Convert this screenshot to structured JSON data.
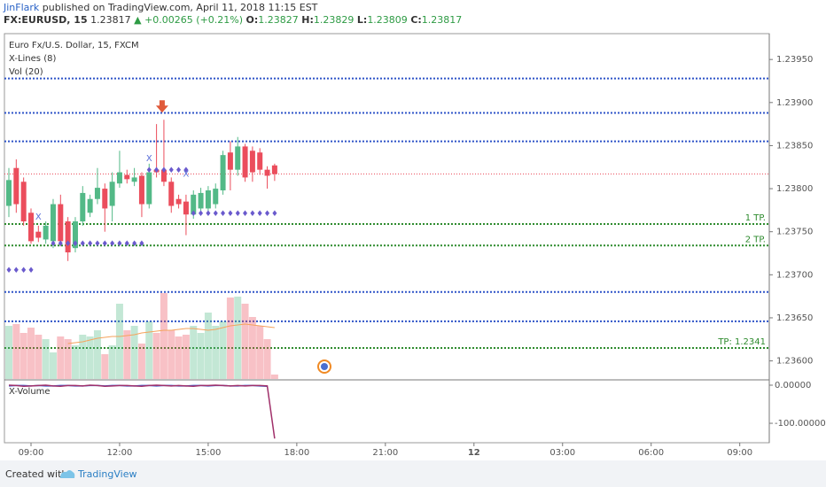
{
  "header": {
    "author": "JinFlark",
    "published": "published on TradingView.com, April 11, 2018 11:15 EST",
    "symbol": "FX:EURUSD, 15",
    "last": 1.23817,
    "change": "▲ +0.00265 (+0.21%)",
    "ohlc": [
      {
        "label": "O:",
        "value": 1.23827
      },
      {
        "label": "H:",
        "value": 1.23829
      },
      {
        "label": "L:",
        "value": 1.23809
      },
      {
        "label": "C:",
        "value": 1.23817
      }
    ]
  },
  "chart_data": {
    "type": "candlestick",
    "title": "Euro Fx/U.S. Dollar, 15, FXCM",
    "indicators": [
      "X-Lines (8)",
      "Vol (20)"
    ],
    "x": [
      8.25,
      8.5,
      8.75,
      9,
      9.25,
      9.5,
      9.75,
      10,
      10.25,
      10.5,
      10.75,
      11,
      11.25,
      11.5,
      11.75,
      12,
      12.25,
      12.5,
      12.75,
      13,
      13.25,
      13.5,
      13.75,
      14,
      14.25,
      14.5,
      14.75,
      15,
      15.25,
      15.5,
      15.75,
      16,
      16.25,
      16.5,
      16.75,
      17,
      17.25
    ],
    "open": [
      1.2378,
      1.23824,
      1.23808,
      1.23772,
      1.2375,
      1.23741,
      1.23739,
      1.23782,
      1.23762,
      1.23731,
      1.23762,
      1.23772,
      1.23788,
      1.238,
      1.2378,
      1.23806,
      1.23816,
      1.23808,
      1.23815,
      1.23782,
      1.23822,
      1.23822,
      1.23808,
      1.23788,
      1.23785,
      1.2377,
      1.23777,
      1.23777,
      1.23782,
      1.23798,
      1.23842,
      1.23822,
      1.23849,
      1.23844,
      1.23842,
      1.23822,
      1.23827
    ],
    "high": [
      1.23824,
      1.23834,
      1.23813,
      1.23777,
      1.23757,
      1.23762,
      1.23788,
      1.23793,
      1.23767,
      1.23767,
      1.23803,
      1.23793,
      1.23824,
      1.23806,
      1.23819,
      1.23844,
      1.23822,
      1.23824,
      1.23819,
      1.23829,
      1.23875,
      1.2388,
      1.23813,
      1.23793,
      1.23793,
      1.23798,
      1.23801,
      1.23803,
      1.23806,
      1.23844,
      1.23855,
      1.2386,
      1.23852,
      1.23849,
      1.23847,
      1.23826,
      1.23829
    ],
    "low": [
      1.23767,
      1.23772,
      1.23757,
      1.23736,
      1.23738,
      1.23736,
      1.23731,
      1.23733,
      1.23716,
      1.23726,
      1.23757,
      1.23767,
      1.23782,
      1.2375,
      1.23762,
      1.23801,
      1.23806,
      1.23803,
      1.23767,
      1.23777,
      1.23813,
      1.23803,
      1.23772,
      1.23777,
      1.23746,
      1.23765,
      1.2377,
      1.23772,
      1.23777,
      1.23793,
      1.23798,
      1.23815,
      1.23808,
      1.23808,
      1.23816,
      1.238,
      1.23809
    ],
    "close": [
      1.2381,
      1.23782,
      1.23762,
      1.23739,
      1.23743,
      1.23757,
      1.23782,
      1.23739,
      1.23726,
      1.23762,
      1.23795,
      1.23788,
      1.23801,
      1.23777,
      1.23808,
      1.23819,
      1.23811,
      1.23813,
      1.23782,
      1.23819,
      1.23819,
      1.23808,
      1.2378,
      1.23782,
      1.2377,
      1.23793,
      1.23795,
      1.23798,
      1.238,
      1.23839,
      1.23822,
      1.23849,
      1.23813,
      1.23819,
      1.23822,
      1.23815,
      1.23817
    ],
    "up_color": "#53b987",
    "down_color": "#eb4d5c",
    "volume": [
      60,
      62,
      52,
      58,
      50,
      45,
      30,
      48,
      45,
      38,
      50,
      48,
      55,
      28,
      38,
      85,
      55,
      60,
      40,
      65,
      52,
      97,
      55,
      48,
      50,
      60,
      52,
      75,
      60,
      65,
      92,
      93,
      85,
      70,
      60,
      45,
      5
    ],
    "volume_ma": {
      "color": "#f5a35c",
      "values": [
        null,
        null,
        null,
        null,
        null,
        null,
        null,
        null,
        40,
        41,
        42,
        44,
        46,
        47,
        48,
        48,
        49,
        50,
        52,
        53,
        54,
        55,
        55,
        56,
        57,
        57,
        56,
        55,
        56,
        58,
        60,
        61,
        62,
        61,
        60,
        59,
        58
      ]
    },
    "xlim": [
      8.1,
      34.0
    ],
    "xticks": [
      {
        "value": 9,
        "label": "09:00"
      },
      {
        "value": 12,
        "label": "12:00"
      },
      {
        "value": 15,
        "label": "15:00"
      },
      {
        "value": 18,
        "label": "18:00"
      },
      {
        "value": 21,
        "label": "21:00"
      },
      {
        "value": 24,
        "label": "12"
      },
      {
        "value": 27,
        "label": "03:00"
      },
      {
        "value": 30,
        "label": "06:00"
      },
      {
        "value": 33,
        "label": "09:00"
      }
    ],
    "ylim": [
      1.23579,
      1.2398
    ],
    "yticks": [
      {
        "value": 1.236,
        "label": "1.23600"
      },
      {
        "value": 1.2365,
        "label": "1.23650"
      },
      {
        "value": 1.237,
        "label": "1.23700"
      },
      {
        "value": 1.2375,
        "label": "1.23750"
      },
      {
        "value": 1.238,
        "label": "1.23800"
      },
      {
        "value": 1.2385,
        "label": "1.23850"
      },
      {
        "value": 1.239,
        "label": "1.23900"
      },
      {
        "value": 1.2395,
        "label": "1.23950"
      }
    ],
    "last_price": {
      "value": 1.23817,
      "color": "#eb4d5c"
    },
    "levels": [
      {
        "value": 1.23928,
        "color": "#2f54c8"
      },
      {
        "value": 1.23888,
        "color": "#2f54c8"
      },
      {
        "value": 1.23855,
        "color": "#2f54c8"
      },
      {
        "value": 1.2368,
        "color": "#2f54c8"
      },
      {
        "value": 1.23646,
        "color": "#2f54c8"
      },
      {
        "value": 1.23759,
        "color": "#2e8b2e",
        "label": "1 TP."
      },
      {
        "value": 1.23734,
        "color": "#2e8b2e",
        "label": "2 TP."
      },
      {
        "value": 1.23615,
        "color": "#2e8b2e",
        "label": "TP: 1.2341"
      }
    ],
    "xline_dots": {
      "color": "#6a5acd",
      "segments": [
        {
          "from": 8.25,
          "to": 9,
          "value": 1.23705
        },
        {
          "from": 9.75,
          "to": 12.75,
          "value": 1.23736
        },
        {
          "from": 13,
          "to": 14.25,
          "value": 1.23821
        },
        {
          "from": 14.5,
          "to": 17.25,
          "value": 1.23771
        }
      ]
    },
    "annotations": [
      {
        "text": "X",
        "x": 9.25,
        "value": 1.23767
      },
      {
        "text": "X",
        "x": 13,
        "value": 1.23835
      },
      {
        "text": "X",
        "x": 14.25,
        "value": 1.23817
      }
    ],
    "lower": {
      "title": "X-Volume",
      "y2lim": [
        11.6,
        -151
      ],
      "y2ticks": [
        {
          "value": 0,
          "label": "0.00000"
        },
        {
          "value": -100,
          "label": "-100.00000"
        }
      ],
      "series": [
        {
          "color": "#3f5fd0",
          "values": [
            -2,
            -1,
            -1,
            -2,
            -1,
            -2,
            -2,
            -1,
            -1,
            -2,
            -2,
            -1,
            -1,
            -2,
            -1,
            -1,
            -2,
            -2,
            -1,
            -1,
            -2,
            -1,
            -1,
            -2,
            -2,
            -1,
            -1,
            -2,
            -1,
            -1,
            -2,
            -2,
            -1,
            -1,
            -2,
            -3,
            null
          ]
        },
        {
          "color": "#a0306a",
          "values": [
            0,
            -1,
            -3,
            -2,
            -1,
            0,
            -2,
            -3,
            -1,
            -1,
            -2,
            0,
            -1,
            -3,
            -2,
            -1,
            -1,
            -2,
            -3,
            -1,
            0,
            -1,
            -2,
            -1,
            -2,
            -3,
            -1,
            -1,
            0,
            -1,
            -2,
            -1,
            -2,
            -1,
            -1,
            -2,
            -140
          ]
        }
      ]
    }
  },
  "footer": {
    "created": "Created with",
    "brand": "TradingView"
  }
}
